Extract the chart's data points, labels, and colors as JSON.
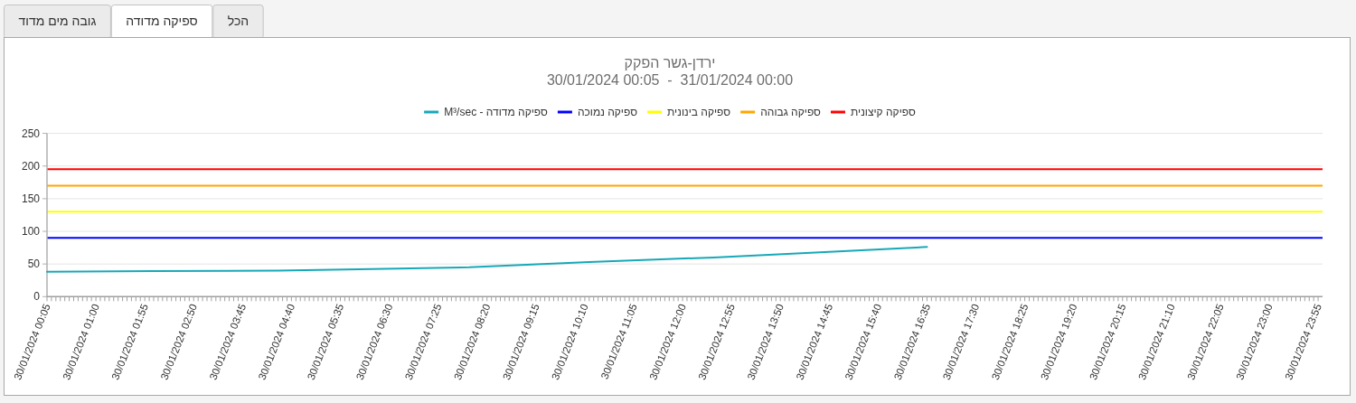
{
  "chart_data": {
    "type": "line",
    "title": "ירדן-גשר הפקק",
    "subtitle": "30/01/2024 00:05  -  31/01/2024 00:00",
    "annotations": [
      "גובה מים מדוד",
      "ספיקה מדודה",
      "הכל"
    ],
    "series": [
      {
        "name": "ספיקה מדודה - M³/sec",
        "color": "#17a8b8",
        "x": [
          "2024-01-30T00:05",
          "2024-01-30T02:05",
          "2024-01-30T04:25",
          "2024-01-30T06:40",
          "2024-01-30T08:00",
          "2024-01-30T10:15",
          "2024-01-30T12:35",
          "2024-01-30T14:50",
          "2024-01-30T16:35"
        ],
        "values": [
          38,
          39,
          40,
          43,
          45,
          53,
          60,
          69,
          76
        ]
      }
    ],
    "ref_lines": [
      {
        "axis": "y",
        "value": 90,
        "label": "ספיקה נמוכה",
        "color": "#0000ff"
      },
      {
        "axis": "y",
        "value": 130,
        "label": "ספיקה בינונית",
        "color": "#ffff00"
      },
      {
        "axis": "y",
        "value": 170,
        "label": "ספיקה גבוהה",
        "color": "#ffa500"
      },
      {
        "axis": "y",
        "value": 195,
        "label": "ספיקה קיצונית",
        "color": "#ff0000"
      }
    ],
    "xlim": [
      "2024-01-30T00:05",
      "2024-01-31T00:00"
    ],
    "xticks": [
      {
        "value": "2024-01-30T00:05",
        "label": "30/01/2024 00:05"
      },
      {
        "value": "2024-01-30T00:10",
        "label": null
      },
      {
        "value": "2024-01-30T00:15",
        "label": null
      },
      {
        "value": "2024-01-30T00:20",
        "label": null
      },
      {
        "value": "2024-01-30T00:25",
        "label": null
      },
      {
        "value": "2024-01-30T00:30",
        "label": null
      },
      {
        "value": "2024-01-30T00:35",
        "label": null
      },
      {
        "value": "2024-01-30T00:40",
        "label": null
      },
      {
        "value": "2024-01-30T00:45",
        "label": null
      },
      {
        "value": "2024-01-30T00:50",
        "label": null
      },
      {
        "value": "2024-01-30T00:55",
        "label": null
      },
      {
        "value": "2024-01-30T01:00",
        "label": "30/01/2024 01:00"
      },
      {
        "value": "2024-01-30T01:05",
        "label": null
      },
      {
        "value": "2024-01-30T01:10",
        "label": null
      },
      {
        "value": "2024-01-30T01:15",
        "label": null
      },
      {
        "value": "2024-01-30T01:20",
        "label": null
      },
      {
        "value": "2024-01-30T01:25",
        "label": null
      },
      {
        "value": "2024-01-30T01:30",
        "label": null
      },
      {
        "value": "2024-01-30T01:35",
        "label": null
      },
      {
        "value": "2024-01-30T01:40",
        "label": null
      },
      {
        "value": "2024-01-30T01:45",
        "label": null
      },
      {
        "value": "2024-01-30T01:50",
        "label": null
      },
      {
        "value": "2024-01-30T01:55",
        "label": "30/01/2024 01:55"
      },
      {
        "value": "2024-01-30T02:00",
        "label": null
      },
      {
        "value": "2024-01-30T02:05",
        "label": null
      },
      {
        "value": "2024-01-30T02:10",
        "label": null
      },
      {
        "value": "2024-01-30T02:15",
        "label": null
      },
      {
        "value": "2024-01-30T02:20",
        "label": null
      },
      {
        "value": "2024-01-30T02:25",
        "label": null
      },
      {
        "value": "2024-01-30T02:30",
        "label": null
      },
      {
        "value": "2024-01-30T02:35",
        "label": null
      },
      {
        "value": "2024-01-30T02:40",
        "label": null
      },
      {
        "value": "2024-01-30T02:45",
        "label": null
      },
      {
        "value": "2024-01-30T02:50",
        "label": "30/01/2024 02:50"
      },
      {
        "value": "2024-01-30T02:55",
        "label": null
      },
      {
        "value": "2024-01-30T03:00",
        "label": null
      },
      {
        "value": "2024-01-30T03:05",
        "label": null
      },
      {
        "value": "2024-01-30T03:10",
        "label": null
      },
      {
        "value": "2024-01-30T03:15",
        "label": null
      },
      {
        "value": "2024-01-30T03:20",
        "label": null
      },
      {
        "value": "2024-01-30T03:25",
        "label": null
      },
      {
        "value": "2024-01-30T03:30",
        "label": null
      },
      {
        "value": "2024-01-30T03:35",
        "label": null
      },
      {
        "value": "2024-01-30T03:40",
        "label": null
      },
      {
        "value": "2024-01-30T03:45",
        "label": "30/01/2024 03:45"
      },
      {
        "value": "2024-01-30T03:50",
        "label": null
      },
      {
        "value": "2024-01-30T03:55",
        "label": null
      },
      {
        "value": "2024-01-30T04:00",
        "label": null
      },
      {
        "value": "2024-01-30T04:05",
        "label": null
      },
      {
        "value": "2024-01-30T04:10",
        "label": null
      },
      {
        "value": "2024-01-30T04:15",
        "label": null
      },
      {
        "value": "2024-01-30T04:20",
        "label": null
      },
      {
        "value": "2024-01-30T04:25",
        "label": null
      },
      {
        "value": "2024-01-30T04:30",
        "label": null
      },
      {
        "value": "2024-01-30T04:35",
        "label": null
      },
      {
        "value": "2024-01-30T04:40",
        "label": "30/01/2024 04:40"
      },
      {
        "value": "2024-01-30T04:45",
        "label": null
      },
      {
        "value": "2024-01-30T04:50",
        "label": null
      },
      {
        "value": "2024-01-30T04:55",
        "label": null
      },
      {
        "value": "2024-01-30T05:00",
        "label": null
      },
      {
        "value": "2024-01-30T05:05",
        "label": null
      },
      {
        "value": "2024-01-30T05:10",
        "label": null
      },
      {
        "value": "2024-01-30T05:15",
        "label": null
      },
      {
        "value": "2024-01-30T05:20",
        "label": null
      },
      {
        "value": "2024-01-30T05:25",
        "label": null
      },
      {
        "value": "2024-01-30T05:30",
        "label": null
      },
      {
        "value": "2024-01-30T05:35",
        "label": "30/01/2024 05:35"
      },
      {
        "value": "2024-01-30T05:40",
        "label": null
      },
      {
        "value": "2024-01-30T05:45",
        "label": null
      },
      {
        "value": "2024-01-30T05:50",
        "label": null
      },
      {
        "value": "2024-01-30T05:55",
        "label": null
      },
      {
        "value": "2024-01-30T06:00",
        "label": null
      },
      {
        "value": "2024-01-30T06:05",
        "label": null
      },
      {
        "value": "2024-01-30T06:10",
        "label": null
      },
      {
        "value": "2024-01-30T06:15",
        "label": null
      },
      {
        "value": "2024-01-30T06:20",
        "label": null
      },
      {
        "value": "2024-01-30T06:25",
        "label": null
      },
      {
        "value": "2024-01-30T06:30",
        "label": "30/01/2024 06:30"
      },
      {
        "value": "2024-01-30T06:35",
        "label": null
      },
      {
        "value": "2024-01-30T06:40",
        "label": null
      },
      {
        "value": "2024-01-30T06:45",
        "label": null
      },
      {
        "value": "2024-01-30T06:50",
        "label": null
      },
      {
        "value": "2024-01-30T06:55",
        "label": null
      },
      {
        "value": "2024-01-30T07:00",
        "label": null
      },
      {
        "value": "2024-01-30T07:05",
        "label": null
      },
      {
        "value": "2024-01-30T07:10",
        "label": null
      },
      {
        "value": "2024-01-30T07:15",
        "label": null
      },
      {
        "value": "2024-01-30T07:20",
        "label": null
      },
      {
        "value": "2024-01-30T07:25",
        "label": "30/01/2024 07:25"
      },
      {
        "value": "2024-01-30T07:30",
        "label": null
      },
      {
        "value": "2024-01-30T07:35",
        "label": null
      },
      {
        "value": "2024-01-30T07:40",
        "label": null
      },
      {
        "value": "2024-01-30T07:45",
        "label": null
      },
      {
        "value": "2024-01-30T07:50",
        "label": null
      },
      {
        "value": "2024-01-30T07:55",
        "label": null
      },
      {
        "value": "2024-01-30T08:00",
        "label": null
      },
      {
        "value": "2024-01-30T08:05",
        "label": null
      },
      {
        "value": "2024-01-30T08:10",
        "label": null
      },
      {
        "value": "2024-01-30T08:15",
        "label": null
      },
      {
        "value": "2024-01-30T08:20",
        "label": "30/01/2024 08:20"
      },
      {
        "value": "2024-01-30T08:25",
        "label": null
      },
      {
        "value": "2024-01-30T08:30",
        "label": null
      },
      {
        "value": "2024-01-30T08:35",
        "label": null
      },
      {
        "value": "2024-01-30T08:40",
        "label": null
      },
      {
        "value": "2024-01-30T08:45",
        "label": null
      },
      {
        "value": "2024-01-30T08:50",
        "label": null
      },
      {
        "value": "2024-01-30T08:55",
        "label": null
      },
      {
        "value": "2024-01-30T09:00",
        "label": null
      },
      {
        "value": "2024-01-30T09:05",
        "label": null
      },
      {
        "value": "2024-01-30T09:10",
        "label": null
      },
      {
        "value": "2024-01-30T09:15",
        "label": "30/01/2024 09:15"
      },
      {
        "value": "2024-01-30T09:20",
        "label": null
      },
      {
        "value": "2024-01-30T09:25",
        "label": null
      },
      {
        "value": "2024-01-30T09:30",
        "label": null
      },
      {
        "value": "2024-01-30T09:35",
        "label": null
      },
      {
        "value": "2024-01-30T09:40",
        "label": null
      },
      {
        "value": "2024-01-30T09:45",
        "label": null
      },
      {
        "value": "2024-01-30T09:50",
        "label": null
      },
      {
        "value": "2024-01-30T09:55",
        "label": null
      },
      {
        "value": "2024-01-30T10:00",
        "label": null
      },
      {
        "value": "2024-01-30T10:05",
        "label": null
      },
      {
        "value": "2024-01-30T10:10",
        "label": "30/01/2024 10:10"
      },
      {
        "value": "2024-01-30T10:15",
        "label": null
      },
      {
        "value": "2024-01-30T10:20",
        "label": null
      },
      {
        "value": "2024-01-30T10:25",
        "label": null
      },
      {
        "value": "2024-01-30T10:30",
        "label": null
      },
      {
        "value": "2024-01-30T10:35",
        "label": null
      },
      {
        "value": "2024-01-30T10:40",
        "label": null
      },
      {
        "value": "2024-01-30T10:45",
        "label": null
      },
      {
        "value": "2024-01-30T10:50",
        "label": null
      },
      {
        "value": "2024-01-30T10:55",
        "label": null
      },
      {
        "value": "2024-01-30T11:00",
        "label": null
      },
      {
        "value": "2024-01-30T11:05",
        "label": "30/01/2024 11:05"
      },
      {
        "value": "2024-01-30T11:10",
        "label": null
      },
      {
        "value": "2024-01-30T11:15",
        "label": null
      },
      {
        "value": "2024-01-30T11:20",
        "label": null
      },
      {
        "value": "2024-01-30T11:25",
        "label": null
      },
      {
        "value": "2024-01-30T11:30",
        "label": null
      },
      {
        "value": "2024-01-30T11:35",
        "label": null
      },
      {
        "value": "2024-01-30T11:40",
        "label": null
      },
      {
        "value": "2024-01-30T11:45",
        "label": null
      },
      {
        "value": "2024-01-30T11:50",
        "label": null
      },
      {
        "value": "2024-01-30T11:55",
        "label": null
      },
      {
        "value": "2024-01-30T12:00",
        "label": "30/01/2024 12:00"
      },
      {
        "value": "2024-01-30T12:05",
        "label": null
      },
      {
        "value": "2024-01-30T12:10",
        "label": null
      },
      {
        "value": "2024-01-30T12:15",
        "label": null
      },
      {
        "value": "2024-01-30T12:20",
        "label": null
      },
      {
        "value": "2024-01-30T12:25",
        "label": null
      },
      {
        "value": "2024-01-30T12:30",
        "label": null
      },
      {
        "value": "2024-01-30T12:35",
        "label": null
      },
      {
        "value": "2024-01-30T12:40",
        "label": null
      },
      {
        "value": "2024-01-30T12:45",
        "label": null
      },
      {
        "value": "2024-01-30T12:50",
        "label": null
      },
      {
        "value": "2024-01-30T12:55",
        "label": "30/01/2024 12:55"
      },
      {
        "value": "2024-01-30T13:00",
        "label": null
      },
      {
        "value": "2024-01-30T13:05",
        "label": null
      },
      {
        "value": "2024-01-30T13:10",
        "label": null
      },
      {
        "value": "2024-01-30T13:15",
        "label": null
      },
      {
        "value": "2024-01-30T13:20",
        "label": null
      },
      {
        "value": "2024-01-30T13:25",
        "label": null
      },
      {
        "value": "2024-01-30T13:30",
        "label": null
      },
      {
        "value": "2024-01-30T13:35",
        "label": null
      },
      {
        "value": "2024-01-30T13:40",
        "label": null
      },
      {
        "value": "2024-01-30T13:45",
        "label": null
      },
      {
        "value": "2024-01-30T13:50",
        "label": "30/01/2024 13:50"
      },
      {
        "value": "2024-01-30T13:55",
        "label": null
      },
      {
        "value": "2024-01-30T14:00",
        "label": null
      },
      {
        "value": "2024-01-30T14:05",
        "label": null
      },
      {
        "value": "2024-01-30T14:10",
        "label": null
      },
      {
        "value": "2024-01-30T14:15",
        "label": null
      },
      {
        "value": "2024-01-30T14:20",
        "label": null
      },
      {
        "value": "2024-01-30T14:25",
        "label": null
      },
      {
        "value": "2024-01-30T14:30",
        "label": null
      },
      {
        "value": "2024-01-30T14:35",
        "label": null
      },
      {
        "value": "2024-01-30T14:40",
        "label": null
      },
      {
        "value": "2024-01-30T14:45",
        "label": "30/01/2024 14:45"
      },
      {
        "value": "2024-01-30T14:50",
        "label": null
      },
      {
        "value": "2024-01-30T14:55",
        "label": null
      },
      {
        "value": "2024-01-30T15:00",
        "label": null
      },
      {
        "value": "2024-01-30T15:05",
        "label": null
      },
      {
        "value": "2024-01-30T15:10",
        "label": null
      },
      {
        "value": "2024-01-30T15:15",
        "label": null
      },
      {
        "value": "2024-01-30T15:20",
        "label": null
      },
      {
        "value": "2024-01-30T15:25",
        "label": null
      },
      {
        "value": "2024-01-30T15:30",
        "label": null
      },
      {
        "value": "2024-01-30T15:35",
        "label": null
      },
      {
        "value": "2024-01-30T15:40",
        "label": "30/01/2024 15:40"
      },
      {
        "value": "2024-01-30T15:45",
        "label": null
      },
      {
        "value": "2024-01-30T15:50",
        "label": null
      },
      {
        "value": "2024-01-30T15:55",
        "label": null
      },
      {
        "value": "2024-01-30T16:00",
        "label": null
      },
      {
        "value": "2024-01-30T16:05",
        "label": null
      },
      {
        "value": "2024-01-30T16:10",
        "label": null
      },
      {
        "value": "2024-01-30T16:15",
        "label": null
      },
      {
        "value": "2024-01-30T16:20",
        "label": null
      },
      {
        "value": "2024-01-30T16:25",
        "label": null
      },
      {
        "value": "2024-01-30T16:30",
        "label": null
      },
      {
        "value": "2024-01-30T16:35",
        "label": "30/01/2024 16:35"
      },
      {
        "value": "2024-01-30T16:40",
        "label": null
      },
      {
        "value": "2024-01-30T16:45",
        "label": null
      },
      {
        "value": "2024-01-30T16:50",
        "label": null
      },
      {
        "value": "2024-01-30T16:55",
        "label": null
      },
      {
        "value": "2024-01-30T17:00",
        "label": null
      },
      {
        "value": "2024-01-30T17:05",
        "label": null
      },
      {
        "value": "2024-01-30T17:10",
        "label": null
      },
      {
        "value": "2024-01-30T17:15",
        "label": null
      },
      {
        "value": "2024-01-30T17:20",
        "label": null
      },
      {
        "value": "2024-01-30T17:25",
        "label": null
      },
      {
        "value": "2024-01-30T17:30",
        "label": "30/01/2024 17:30"
      },
      {
        "value": "2024-01-30T17:35",
        "label": null
      },
      {
        "value": "2024-01-30T17:40",
        "label": null
      },
      {
        "value": "2024-01-30T17:45",
        "label": null
      },
      {
        "value": "2024-01-30T17:50",
        "label": null
      },
      {
        "value": "2024-01-30T17:55",
        "label": null
      },
      {
        "value": "2024-01-30T18:00",
        "label": null
      },
      {
        "value": "2024-01-30T18:05",
        "label": null
      },
      {
        "value": "2024-01-30T18:10",
        "label": null
      },
      {
        "value": "2024-01-30T18:15",
        "label": null
      },
      {
        "value": "2024-01-30T18:20",
        "label": null
      },
      {
        "value": "2024-01-30T18:25",
        "label": "30/01/2024 18:25"
      },
      {
        "value": "2024-01-30T18:30",
        "label": null
      },
      {
        "value": "2024-01-30T18:35",
        "label": null
      },
      {
        "value": "2024-01-30T18:40",
        "label": null
      },
      {
        "value": "2024-01-30T18:45",
        "label": null
      },
      {
        "value": "2024-01-30T18:50",
        "label": null
      },
      {
        "value": "2024-01-30T18:55",
        "label": null
      },
      {
        "value": "2024-01-30T19:00",
        "label": null
      },
      {
        "value": "2024-01-30T19:05",
        "label": null
      },
      {
        "value": "2024-01-30T19:10",
        "label": null
      },
      {
        "value": "2024-01-30T19:15",
        "label": null
      },
      {
        "value": "2024-01-30T19:20",
        "label": "30/01/2024 19:20"
      },
      {
        "value": "2024-01-30T19:25",
        "label": null
      },
      {
        "value": "2024-01-30T19:30",
        "label": null
      },
      {
        "value": "2024-01-30T19:35",
        "label": null
      },
      {
        "value": "2024-01-30T19:40",
        "label": null
      },
      {
        "value": "2024-01-30T19:45",
        "label": null
      },
      {
        "value": "2024-01-30T19:50",
        "label": null
      },
      {
        "value": "2024-01-30T19:55",
        "label": null
      },
      {
        "value": "2024-01-30T20:00",
        "label": null
      },
      {
        "value": "2024-01-30T20:05",
        "label": null
      },
      {
        "value": "2024-01-30T20:10",
        "label": null
      },
      {
        "value": "2024-01-30T20:15",
        "label": "30/01/2024 20:15"
      },
      {
        "value": "2024-01-30T20:20",
        "label": null
      },
      {
        "value": "2024-01-30T20:25",
        "label": null
      },
      {
        "value": "2024-01-30T20:30",
        "label": null
      },
      {
        "value": "2024-01-30T20:35",
        "label": null
      },
      {
        "value": "2024-01-30T20:40",
        "label": null
      },
      {
        "value": "2024-01-30T20:45",
        "label": null
      },
      {
        "value": "2024-01-30T20:50",
        "label": null
      },
      {
        "value": "2024-01-30T20:55",
        "label": null
      },
      {
        "value": "2024-01-30T21:00",
        "label": null
      },
      {
        "value": "2024-01-30T21:05",
        "label": null
      },
      {
        "value": "2024-01-30T21:10",
        "label": "30/01/2024 21:10"
      },
      {
        "value": "2024-01-30T21:15",
        "label": null
      },
      {
        "value": "2024-01-30T21:20",
        "label": null
      },
      {
        "value": "2024-01-30T21:25",
        "label": null
      },
      {
        "value": "2024-01-30T21:30",
        "label": null
      },
      {
        "value": "2024-01-30T21:35",
        "label": null
      },
      {
        "value": "2024-01-30T21:40",
        "label": null
      },
      {
        "value": "2024-01-30T21:45",
        "label": null
      },
      {
        "value": "2024-01-30T21:50",
        "label": null
      },
      {
        "value": "2024-01-30T21:55",
        "label": null
      },
      {
        "value": "2024-01-30T22:00",
        "label": null
      },
      {
        "value": "2024-01-30T22:05",
        "label": "30/01/2024 22:05"
      },
      {
        "value": "2024-01-30T22:10",
        "label": null
      },
      {
        "value": "2024-01-30T22:15",
        "label": null
      },
      {
        "value": "2024-01-30T22:20",
        "label": null
      },
      {
        "value": "2024-01-30T22:25",
        "label": null
      },
      {
        "value": "2024-01-30T22:30",
        "label": null
      },
      {
        "value": "2024-01-30T22:35",
        "label": null
      },
      {
        "value": "2024-01-30T22:40",
        "label": null
      },
      {
        "value": "2024-01-30T22:45",
        "label": null
      },
      {
        "value": "2024-01-30T22:50",
        "label": null
      },
      {
        "value": "2024-01-30T22:55",
        "label": null
      },
      {
        "value": "2024-01-30T23:00",
        "label": "30/01/2024 23:00"
      },
      {
        "value": "2024-01-30T23:05",
        "label": null
      },
      {
        "value": "2024-01-30T23:10",
        "label": null
      },
      {
        "value": "2024-01-30T23:15",
        "label": null
      },
      {
        "value": "2024-01-30T23:20",
        "label": null
      },
      {
        "value": "2024-01-30T23:25",
        "label": null
      },
      {
        "value": "2024-01-30T23:30",
        "label": null
      },
      {
        "value": "2024-01-30T23:35",
        "label": null
      },
      {
        "value": "2024-01-30T23:40",
        "label": null
      },
      {
        "value": "2024-01-30T23:45",
        "label": null
      },
      {
        "value": "2024-01-30T23:50",
        "label": null
      },
      {
        "value": "2024-01-30T23:55",
        "label": "30/01/2024 23:55"
      }
    ],
    "ylim": [
      0,
      250
    ],
    "yticks": [
      0,
      50,
      100,
      150,
      200,
      250
    ],
    "grid": "y",
    "legend": "top"
  }
}
